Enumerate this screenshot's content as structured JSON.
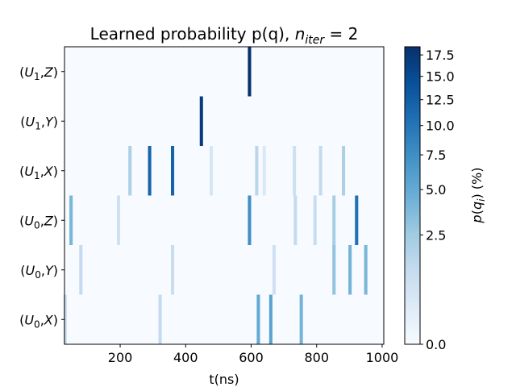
{
  "chart_data": {
    "type": "heatmap",
    "title_main": "Learned probability p(q), ",
    "title_math_n": "n",
    "title_math_sub": "iter",
    "title_math_rest": " = 2",
    "xlabel": "t(ns)",
    "xlim": [
      30,
      1005
    ],
    "xticks": [
      200,
      400,
      600,
      800,
      1000
    ],
    "xtick_labels": [
      "200",
      "400",
      "600",
      "800",
      "1000"
    ],
    "rows": [
      {
        "label_parts": [
          "(U",
          "1",
          ",Z)"
        ],
        "cells": [
          {
            "x": 595,
            "value": 18.5
          }
        ]
      },
      {
        "label_parts": [
          "(U",
          "1",
          ",Y)"
        ],
        "cells": [
          {
            "x": 448,
            "value": 17.0
          }
        ]
      },
      {
        "label_parts": [
          "(U",
          "1",
          ",X)"
        ],
        "cells": [
          {
            "x": 230,
            "value": 2.0
          },
          {
            "x": 290,
            "value": 12.0
          },
          {
            "x": 360,
            "value": 12.0
          },
          {
            "x": 478,
            "value": 0.5
          },
          {
            "x": 617,
            "value": 1.5
          },
          {
            "x": 640,
            "value": 0.4
          },
          {
            "x": 732,
            "value": 0.8
          },
          {
            "x": 812,
            "value": 1.2
          },
          {
            "x": 882,
            "value": 2.0
          }
        ]
      },
      {
        "label_parts": [
          "(U",
          "0",
          ",Z)"
        ],
        "cells": [
          {
            "x": 50,
            "value": 4.0
          },
          {
            "x": 195,
            "value": 0.8
          },
          {
            "x": 595,
            "value": 7.5
          },
          {
            "x": 735,
            "value": 1.2
          },
          {
            "x": 795,
            "value": 1.0
          },
          {
            "x": 853,
            "value": 2.2
          },
          {
            "x": 922,
            "value": 10.5
          }
        ]
      },
      {
        "label_parts": [
          "(U",
          "0",
          ",Y)"
        ],
        "cells": [
          {
            "x": 80,
            "value": 1.2
          },
          {
            "x": 360,
            "value": 1.0
          },
          {
            "x": 670,
            "value": 0.8
          },
          {
            "x": 853,
            "value": 3.0
          },
          {
            "x": 902,
            "value": 4.2
          },
          {
            "x": 950,
            "value": 4.0
          }
        ]
      },
      {
        "label_parts": [
          "(U",
          "0",
          ",X)"
        ],
        "cells": [
          {
            "x": 32,
            "value": 0.8
          },
          {
            "x": 322,
            "value": 1.2
          },
          {
            "x": 622,
            "value": 5.0
          },
          {
            "x": 660,
            "value": 5.5
          },
          {
            "x": 753,
            "value": 4.2
          }
        ]
      }
    ],
    "cell_width_ns": 10,
    "colorbar": {
      "label_main": "p(q",
      "label_sub": "i",
      "label_rest": ") (%)",
      "min": 0.0,
      "max": 18.5,
      "scale": "sqrt",
      "ticks": [
        0.0,
        2.5,
        5.0,
        7.5,
        10.0,
        12.5,
        15.0,
        17.5
      ],
      "tick_labels": [
        "0.0",
        "2.5",
        "5.0",
        "7.5",
        "10.0",
        "12.5",
        "15.0",
        "17.5"
      ]
    },
    "colormap": [
      "#f7fbff",
      "#deebf7",
      "#c6dbef",
      "#9ecae1",
      "#6baed6",
      "#4292c6",
      "#2171b5",
      "#08519c",
      "#08306b"
    ]
  }
}
